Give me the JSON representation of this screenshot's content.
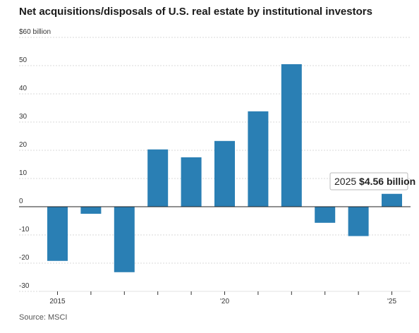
{
  "chart_data": {
    "type": "bar",
    "title": "Net acquisitions/disposals of U.S. real estate by institutional investors",
    "source": "Source: MSCI",
    "y_unit_label": "$60 billion",
    "yticks": [
      {
        "value": 60,
        "label": "$60 billion"
      },
      {
        "value": 50,
        "label": "50"
      },
      {
        "value": 40,
        "label": "40"
      },
      {
        "value": 30,
        "label": "30"
      },
      {
        "value": 20,
        "label": "20"
      },
      {
        "value": 10,
        "label": "10"
      },
      {
        "value": 0,
        "label": "0"
      },
      {
        "value": -10,
        "label": "-10"
      },
      {
        "value": -20,
        "label": "-20"
      },
      {
        "value": -30,
        "label": "-30"
      }
    ],
    "ylim": [
      -30,
      60
    ],
    "categories": [
      "2015",
      "2016",
      "2017",
      "2018",
      "2019",
      "2020",
      "2021",
      "2022",
      "2023",
      "2024",
      "2025"
    ],
    "values": [
      -19.2,
      -2.5,
      -23.2,
      20.3,
      17.5,
      23.3,
      33.8,
      50.5,
      -5.7,
      -10.4,
      4.56
    ],
    "xtick_labels": [
      {
        "category": "2015",
        "label": "2015"
      },
      {
        "category": "2020",
        "label": "'20"
      },
      {
        "category": "2025",
        "label": "'25"
      }
    ],
    "bar_color": "#2a7fb4",
    "grid": true,
    "annotation": {
      "category": "2025",
      "year": "2025",
      "value_text": "$4.56 billion"
    }
  }
}
